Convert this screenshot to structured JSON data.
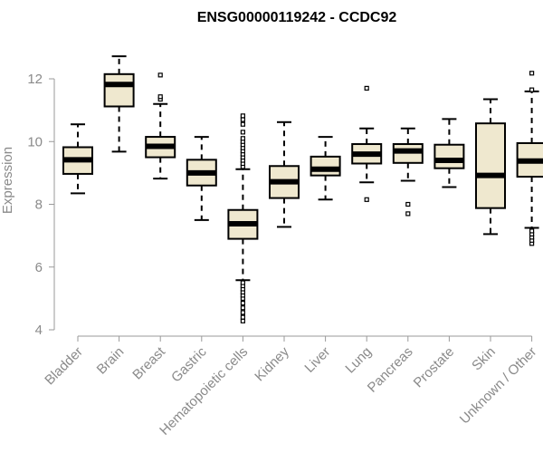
{
  "chart_data": {
    "type": "boxplot",
    "title": "ENSG00000119242 - CCDC92",
    "xlabel": "",
    "ylabel": "Expression",
    "ylim": [
      4,
      13.3
    ],
    "yticks": [
      4,
      6,
      8,
      10,
      12
    ],
    "box_color": "#efe8cf",
    "categories": [
      "Bladder",
      "Brain",
      "Breast",
      "Gastric",
      "Hematopoietic cells",
      "Kidney",
      "Liver",
      "Lung",
      "Pancreas",
      "Prostate",
      "Skin",
      "Unknown / Other"
    ],
    "boxes": [
      {
        "whisker_low": 8.35,
        "q1": 8.97,
        "median": 9.42,
        "q3": 9.82,
        "whisker_high": 10.55,
        "outliers": []
      },
      {
        "whisker_low": 9.68,
        "q1": 11.12,
        "median": 11.82,
        "q3": 12.15,
        "whisker_high": 12.72,
        "outliers": []
      },
      {
        "whisker_low": 8.82,
        "q1": 9.5,
        "median": 9.85,
        "q3": 10.15,
        "whisker_high": 11.2,
        "outliers": [
          11.35,
          11.43,
          12.12
        ]
      },
      {
        "whisker_low": 7.5,
        "q1": 8.6,
        "median": 9.0,
        "q3": 9.42,
        "whisker_high": 10.15,
        "outliers": []
      },
      {
        "whisker_low": 5.58,
        "q1": 6.9,
        "median": 7.38,
        "q3": 7.82,
        "whisker_high": 9.12,
        "outliers": [
          4.28,
          4.4,
          4.55,
          4.7,
          4.85,
          5.0,
          5.1,
          5.2,
          5.3,
          5.4,
          5.5,
          9.2,
          9.3,
          9.4,
          9.5,
          9.6,
          9.7,
          9.8,
          9.9,
          10.0,
          10.1,
          10.3,
          10.55,
          10.7,
          10.82
        ]
      },
      {
        "whisker_low": 7.28,
        "q1": 8.2,
        "median": 8.72,
        "q3": 9.22,
        "whisker_high": 10.62,
        "outliers": []
      },
      {
        "whisker_low": 8.15,
        "q1": 8.92,
        "median": 9.12,
        "q3": 9.52,
        "whisker_high": 10.15,
        "outliers": []
      },
      {
        "whisker_low": 8.7,
        "q1": 9.3,
        "median": 9.6,
        "q3": 9.92,
        "whisker_high": 10.42,
        "outliers": [
          8.15,
          11.7
        ]
      },
      {
        "whisker_low": 8.75,
        "q1": 9.32,
        "median": 9.7,
        "q3": 9.92,
        "whisker_high": 10.42,
        "outliers": [
          7.7,
          8.0
        ]
      },
      {
        "whisker_low": 8.55,
        "q1": 9.15,
        "median": 9.4,
        "q3": 9.9,
        "whisker_high": 10.72,
        "outliers": []
      },
      {
        "whisker_low": 7.05,
        "q1": 7.88,
        "median": 8.92,
        "q3": 10.58,
        "whisker_high": 11.35,
        "outliers": []
      },
      {
        "whisker_low": 7.25,
        "q1": 8.88,
        "median": 9.38,
        "q3": 9.95,
        "whisker_high": 11.6,
        "outliers": [
          6.75,
          6.85,
          6.95,
          7.05,
          7.15,
          11.65,
          12.18
        ]
      }
    ]
  }
}
